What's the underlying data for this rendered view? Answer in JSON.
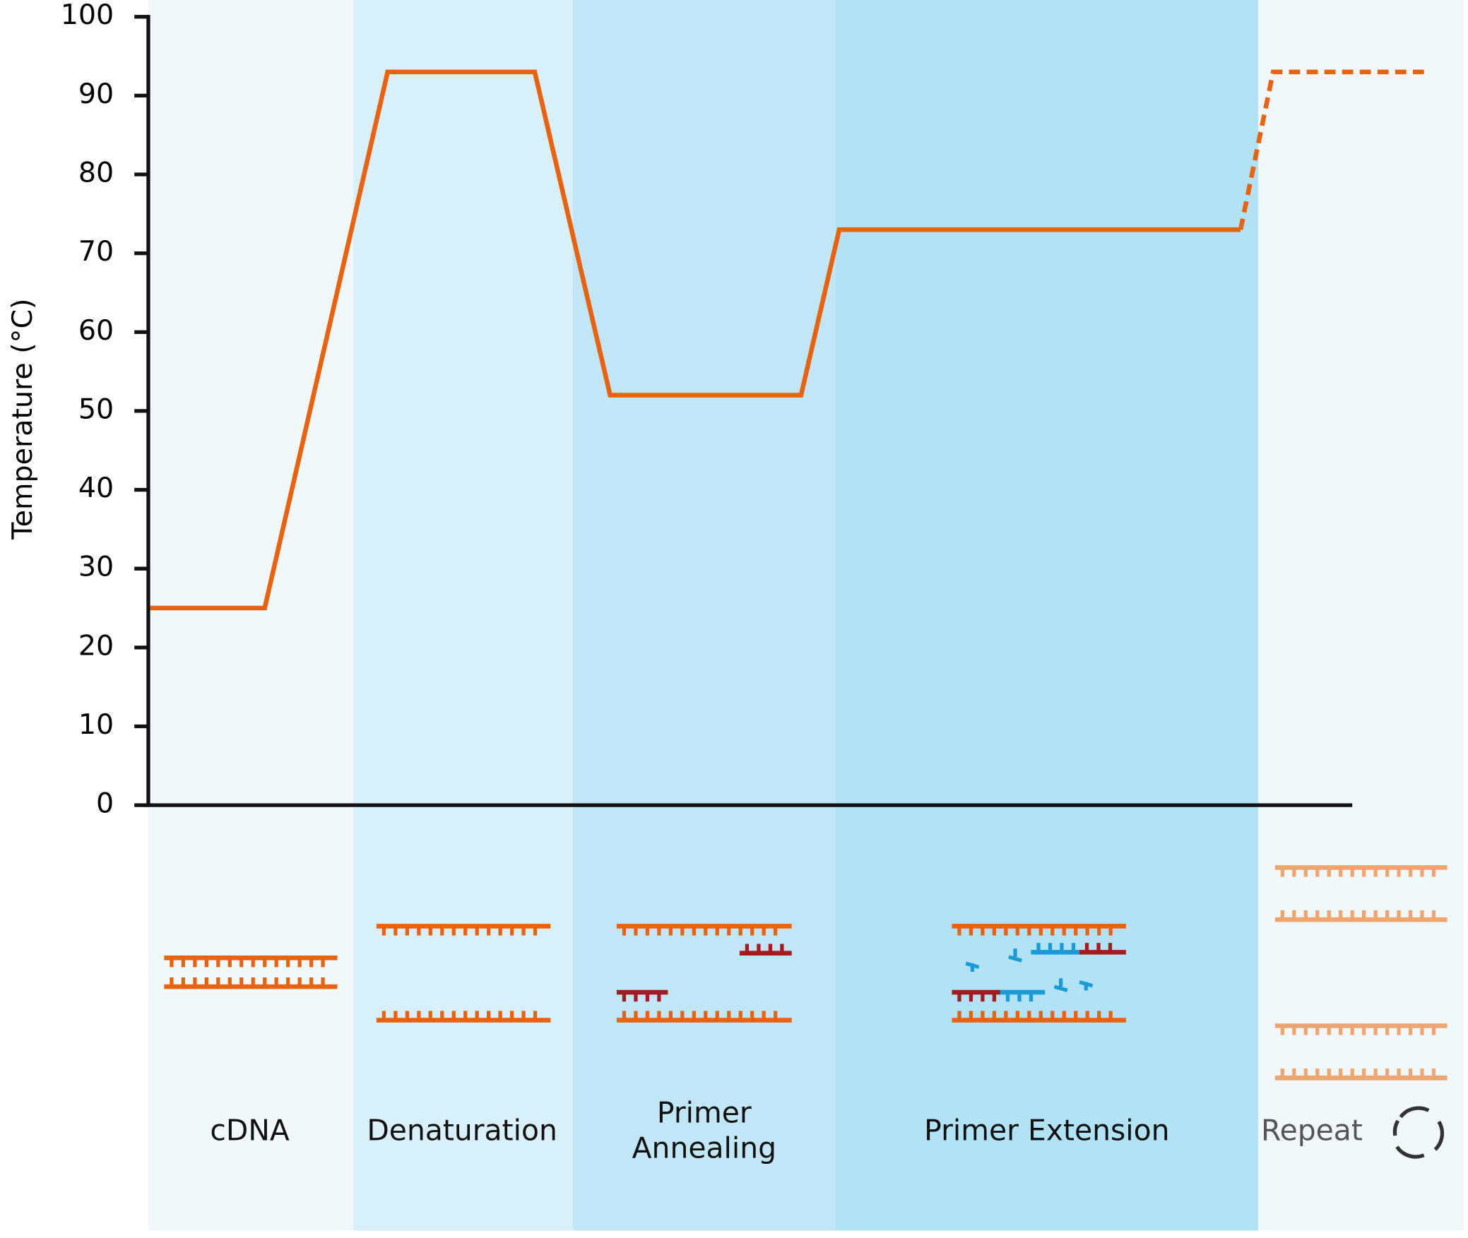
{
  "chart_data": {
    "type": "line",
    "y_label": "Temperature (°C)",
    "ylim": [
      0,
      100
    ],
    "yticks": [
      0,
      10,
      20,
      30,
      40,
      50,
      60,
      70,
      80,
      90,
      100
    ],
    "series": [
      {
        "color": "#e8620f",
        "values": [
          25,
          25,
          93,
          93,
          52,
          52,
          73,
          73
        ]
      },
      {
        "color": "#e8620f",
        "dashed": true,
        "values": [
          73,
          93,
          93
        ]
      }
    ],
    "phases": [
      {
        "label": "cDNA",
        "color": "#f1f8fc"
      },
      {
        "label": "Denaturation",
        "color": "#d9f0fa"
      },
      {
        "label": "Primer Annealing",
        "color": "#c1e7f6"
      },
      {
        "label": "Primer Extension",
        "color": "#b1e2f6"
      },
      {
        "label": "Repeat",
        "color": "#f1f8fc"
      }
    ]
  }
}
